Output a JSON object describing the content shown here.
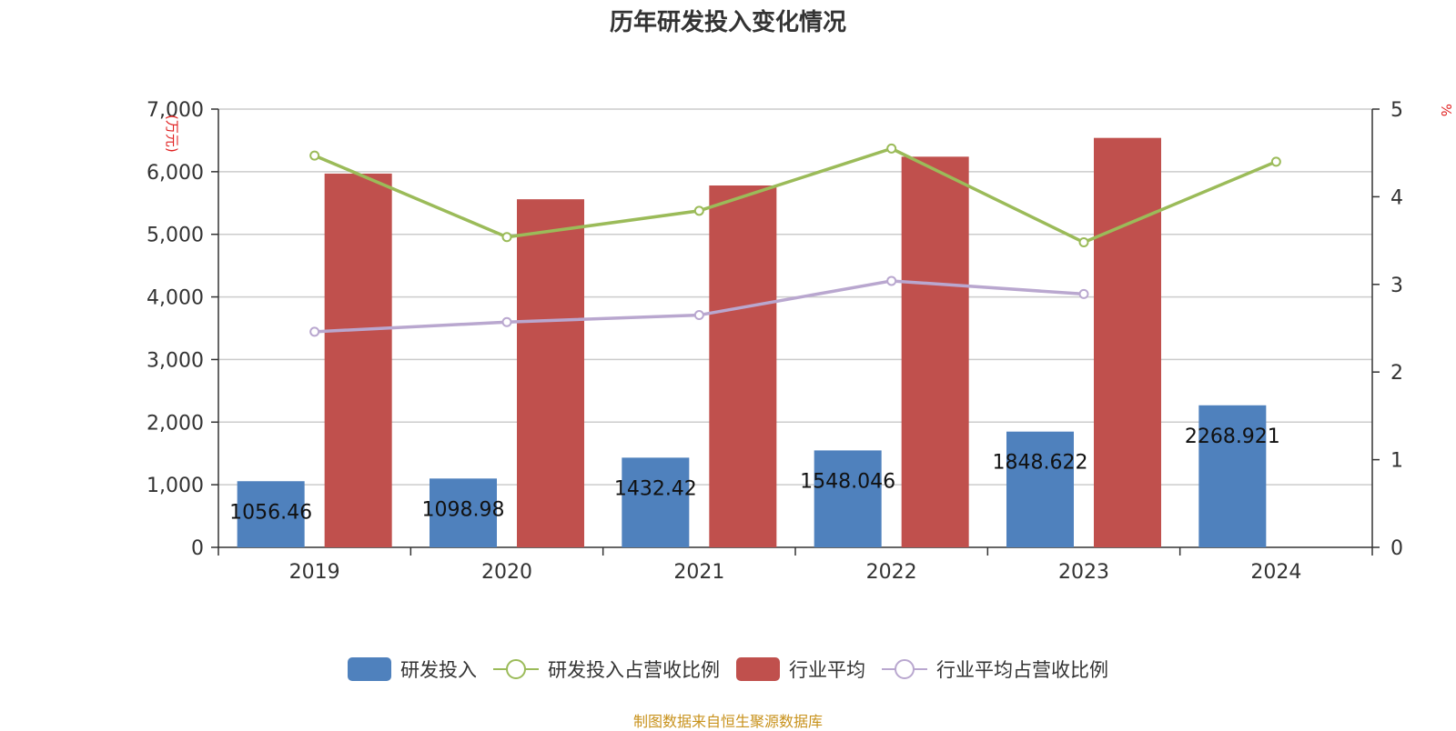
{
  "chart_data": {
    "type": "bar",
    "title": "历年研发投入变化情况",
    "categories": [
      "2019",
      "2020",
      "2021",
      "2022",
      "2023",
      "2024"
    ],
    "y_left": {
      "label": "(万元)",
      "range": [
        0,
        7000
      ],
      "ticks": [
        "0",
        "1,000",
        "2,000",
        "3,000",
        "4,000",
        "5,000",
        "6,000",
        "7,000"
      ]
    },
    "y_right": {
      "label": "%",
      "range": [
        0,
        5
      ],
      "ticks": [
        "0",
        "1",
        "2",
        "3",
        "4",
        "5"
      ]
    },
    "grid": true,
    "legend_position": "bottom",
    "series": [
      {
        "name": "研发投入",
        "type": "bar",
        "axis": "left",
        "color": "#4f81bd",
        "values": [
          1056.46,
          1098.98,
          1432.42,
          1548.046,
          1848.622,
          2268.921
        ],
        "data_labels": [
          "1056.46",
          "1098.98",
          "1432.42",
          "1548.046",
          "1848.622",
          "2268.921"
        ]
      },
      {
        "name": "研发投入占营收比例",
        "type": "line",
        "axis": "right",
        "color": "#9bbb59",
        "values": [
          4.47,
          3.54,
          3.84,
          4.55,
          3.48,
          4.4
        ]
      },
      {
        "name": "行业平均",
        "type": "bar",
        "axis": "left",
        "color": "#c0504d",
        "values": [
          5970,
          5560,
          5780,
          6240,
          6540,
          null
        ]
      },
      {
        "name": "行业平均占营收比例",
        "type": "line",
        "axis": "right",
        "color": "#b9a7cf",
        "values": [
          2.46,
          2.57,
          2.65,
          3.04,
          2.89,
          null
        ]
      }
    ]
  },
  "source_text": "制图数据来自恒生聚源数据库"
}
